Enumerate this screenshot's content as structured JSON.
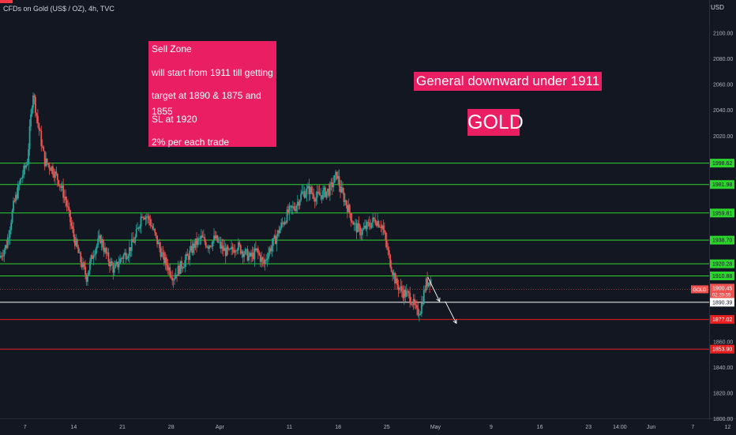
{
  "header": {
    "symbol_line": "CFDs on Gold (US$ / OZ), 4h, TVC",
    "currency": "USD"
  },
  "annotations": {
    "sell_zone_lines": [
      "Sell Zone",
      "will start from 1911 till getting",
      "target at 1890 & 1875 and 1855",
      "SL at 1920",
      "2% per each trade"
    ],
    "headline": "General downward under 1911",
    "asset_label": "GOLD"
  },
  "colors": {
    "background": "#131722",
    "up_candle": "#26a69a",
    "down_candle": "#ef5350",
    "annotation_box": "#e91e63",
    "resistance_line": "#2bd62b",
    "support_line": "#e91e1e",
    "current_line": "#ffffff"
  },
  "chart_data": {
    "type": "candlestick",
    "title": "CFDs on Gold (US$ / OZ), 4h, TVC",
    "ylim": [
      1800,
      2112
    ],
    "y_ticks": [
      "2100.00",
      "2080.00",
      "2060.00",
      "2040.00",
      "2020.00",
      "1860.00",
      "1840.00",
      "1820.00",
      "1800.00"
    ],
    "x_ticks": [
      {
        "label": "7",
        "day": 7
      },
      {
        "label": "14",
        "day": 14
      },
      {
        "label": "21",
        "day": 21
      },
      {
        "label": "28",
        "day": 28
      },
      {
        "label": "Apr",
        "day": 35
      },
      {
        "label": "11",
        "day": 45
      },
      {
        "label": "18",
        "day": 52
      },
      {
        "label": "25",
        "day": 59
      },
      {
        "label": "May",
        "day": 66
      },
      {
        "label": "9",
        "day": 74
      },
      {
        "label": "16",
        "day": 81
      },
      {
        "label": "23",
        "day": 88
      },
      {
        "label": "14:00",
        "day": 92.5
      },
      {
        "label": "Jun",
        "day": 97
      },
      {
        "label": "7",
        "day": 103
      },
      {
        "label": "12",
        "day": 108
      }
    ],
    "x_range": [
      3.4,
      109.2
    ],
    "last_candle_day": 65.4,
    "price_path": [
      [
        3.5,
        1925
      ],
      [
        4.5,
        1935
      ],
      [
        5.5,
        1965
      ],
      [
        6.5,
        1985
      ],
      [
        7.5,
        2000
      ],
      [
        8.3,
        2055
      ],
      [
        9.0,
        2030
      ],
      [
        10.0,
        2000
      ],
      [
        11.0,
        1995
      ],
      [
        12.0,
        1985
      ],
      [
        13.0,
        1970
      ],
      [
        14.0,
        1945
      ],
      [
        15.0,
        1925
      ],
      [
        16.0,
        1910
      ],
      [
        17.0,
        1930
      ],
      [
        18.0,
        1940
      ],
      [
        19.0,
        1925
      ],
      [
        20.0,
        1915
      ],
      [
        21.0,
        1925
      ],
      [
        22.0,
        1930
      ],
      [
        23.0,
        1940
      ],
      [
        24.0,
        1960
      ],
      [
        25.0,
        1955
      ],
      [
        26.0,
        1940
      ],
      [
        27.0,
        1925
      ],
      [
        28.5,
        1910
      ],
      [
        29.5,
        1918
      ],
      [
        30.5,
        1925
      ],
      [
        31.5,
        1935
      ],
      [
        32.5,
        1940
      ],
      [
        33.5,
        1935
      ],
      [
        34.5,
        1940
      ],
      [
        35.5,
        1932
      ],
      [
        36.5,
        1928
      ],
      [
        37.5,
        1935
      ],
      [
        38.5,
        1930
      ],
      [
        39.5,
        1925
      ],
      [
        40.5,
        1930
      ],
      [
        41.5,
        1920
      ],
      [
        42.0,
        1928
      ],
      [
        43.0,
        1938
      ],
      [
        44.0,
        1950
      ],
      [
        45.0,
        1960
      ],
      [
        46.0,
        1965
      ],
      [
        47.0,
        1975
      ],
      [
        48.0,
        1978
      ],
      [
        49.0,
        1972
      ],
      [
        50.0,
        1975
      ],
      [
        51.0,
        1978
      ],
      [
        52.0,
        1990
      ],
      [
        52.5,
        1978
      ],
      [
        53.5,
        1965
      ],
      [
        54.5,
        1950
      ],
      [
        55.5,
        1945
      ],
      [
        56.5,
        1950
      ],
      [
        57.5,
        1955
      ],
      [
        58.5,
        1950
      ],
      [
        59.5,
        1925
      ],
      [
        60.5,
        1905
      ],
      [
        61.5,
        1898
      ],
      [
        62.5,
        1895
      ],
      [
        63.5,
        1882
      ],
      [
        64.0,
        1885
      ],
      [
        64.8,
        1905
      ],
      [
        65.4,
        1908
      ]
    ],
    "horizontal_levels": [
      {
        "price": 1998.62,
        "label": "1998.62",
        "kind": "resistance"
      },
      {
        "price": 1981.98,
        "label": "1981.98",
        "kind": "resistance"
      },
      {
        "price": 1959.81,
        "label": "1959.81",
        "kind": "resistance"
      },
      {
        "price": 1938.7,
        "label": "1938.70",
        "kind": "resistance"
      },
      {
        "price": 1920.28,
        "label": "1920.28",
        "kind": "resistance"
      },
      {
        "price": 1910.88,
        "label": "1910.88",
        "kind": "resistance"
      },
      {
        "price": 1890.39,
        "label": "1890.39",
        "kind": "current"
      },
      {
        "price": 1877.02,
        "label": "1877.02",
        "kind": "support"
      },
      {
        "price": 1853.9,
        "label": "1853.90",
        "kind": "support"
      }
    ],
    "current_price": {
      "price": 1900.45,
      "label": "1900.45",
      "countdown": "02:20:55",
      "tag": "GOLD"
    },
    "projection_arrows": [
      [
        [
          64.9,
          1910
        ],
        [
          66.6,
          1891
        ]
      ],
      [
        [
          67.4,
          1891
        ],
        [
          69.0,
          1874
        ]
      ]
    ]
  }
}
